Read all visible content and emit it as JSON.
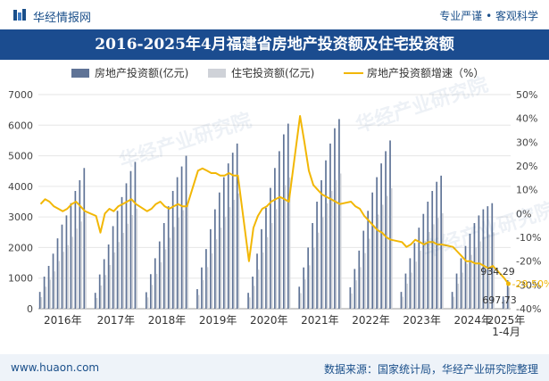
{
  "header": {
    "site_name": "华经情报网",
    "tagline": "专业严谨 • 客观科学",
    "logo_icon": "huajing-logo-icon"
  },
  "chart_data": {
    "type": "bar",
    "title": "2016-2025年4月福建省房地产投资额及住宅投资额",
    "legend": [
      "房地产投资额(亿元)",
      "住宅投资额(亿元)",
      "房地产投资额增速（%）"
    ],
    "left_axis": {
      "ticks": [
        "0",
        "1000",
        "2000",
        "3000",
        "4000",
        "5000",
        "6000",
        "7000"
      ],
      "ylim": [
        0,
        7000
      ]
    },
    "right_axis": {
      "ticks": [
        "-40%",
        "-30%",
        "-20%",
        "-10%",
        "0%",
        "10%",
        "20%",
        "30%",
        "40%",
        "50%"
      ],
      "ylim": [
        -40,
        50
      ]
    },
    "years": [
      {
        "label": "2016年",
        "invest": [
          550,
          1050,
          1400,
          1800,
          2300,
          2750,
          3050,
          3450,
          3850,
          4200,
          4600
        ],
        "resid": [
          380,
          720,
          950,
          1220,
          1560,
          1860,
          2080,
          2350,
          2620,
          2850,
          3120
        ],
        "growth": [
          4,
          6,
          5,
          3,
          2,
          1,
          2,
          4,
          5,
          3,
          1
        ]
      },
      {
        "label": "2017年",
        "invest": [
          520,
          1120,
          1620,
          2100,
          2700,
          3200,
          3650,
          4100,
          4500,
          4800
        ],
        "resid": [
          350,
          760,
          1100,
          1430,
          1840,
          2180,
          2480,
          2780,
          3060,
          3270
        ],
        "growth": [
          -1,
          -8,
          0,
          2,
          1,
          3,
          4,
          5,
          6,
          4
        ]
      },
      {
        "label": "2018年",
        "invest": [
          540,
          1130,
          1650,
          2200,
          2800,
          3350,
          3850,
          4300,
          4650,
          5000
        ],
        "resid": [
          370,
          780,
          1140,
          1520,
          1940,
          2320,
          2670,
          2980,
          3220,
          3460
        ],
        "growth": [
          1,
          2,
          4,
          5,
          3,
          2,
          3,
          4,
          3,
          3
        ]
      },
      {
        "label": "2019年",
        "invest": [
          640,
          1350,
          1950,
          2600,
          3250,
          3800,
          4300,
          4750,
          5100,
          5400
        ],
        "resid": [
          450,
          940,
          1360,
          1810,
          2270,
          2650,
          3000,
          3320,
          3560,
          3770
        ],
        "growth": [
          18,
          19,
          18,
          17,
          17,
          16,
          16,
          17,
          16,
          16
        ]
      },
      {
        "label": "2020年",
        "invest": [
          520,
          1050,
          1800,
          2600,
          3300,
          3950,
          4600,
          5150,
          5700,
          6050
        ],
        "resid": [
          370,
          750,
          1280,
          1840,
          2340,
          2800,
          3260,
          3650,
          4040,
          4290
        ],
        "growth": [
          -20,
          -6,
          -1,
          2,
          3,
          5,
          6,
          7,
          6,
          5
        ]
      },
      {
        "label": "2021年",
        "invest": [
          720,
          1350,
          2000,
          2800,
          3500,
          4200,
          4850,
          5400,
          5900,
          6200
        ],
        "resid": [
          510,
          960,
          1420,
          1990,
          2490,
          2990,
          3450,
          3850,
          4210,
          4420
        ],
        "growth": [
          41,
          30,
          18,
          12,
          10,
          8,
          7,
          6,
          5,
          4
        ]
      },
      {
        "label": "2022年",
        "invest": [
          700,
          1300,
          1900,
          2550,
          3200,
          3800,
          4300,
          4750,
          5150,
          5500
        ],
        "resid": [
          500,
          930,
          1360,
          1820,
          2290,
          2720,
          3080,
          3400,
          3690,
          3940
        ],
        "growth": [
          5,
          3,
          2,
          -1,
          -3,
          -5,
          -7,
          -8,
          -10,
          -11
        ]
      },
      {
        "label": "2023年",
        "invest": [
          550,
          1150,
          1650,
          2150,
          2650,
          3100,
          3500,
          3850,
          4150,
          4350
        ],
        "resid": [
          390,
          820,
          1180,
          1540,
          1900,
          2220,
          2510,
          2760,
          2970,
          3120
        ],
        "growth": [
          -12,
          -14,
          -13,
          -11,
          -12,
          -13,
          -12,
          -12,
          -13,
          -13
        ]
      },
      {
        "label": "2024年",
        "invest": [
          550,
          1150,
          1650,
          2050,
          2450,
          2800,
          3050,
          3250,
          3350,
          3450
        ],
        "resid": [
          390,
          820,
          1180,
          1470,
          1760,
          2010,
          2200,
          2350,
          2430,
          2500
        ],
        "growth": [
          -14,
          -16,
          -18,
          -20,
          -20,
          -21,
          -21,
          -22,
          -23,
          -22
        ]
      },
      {
        "label": "2025年\n1-4月",
        "invest": [
          400,
          934.29
        ],
        "resid": [
          290,
          697.73
        ],
        "growth": [
          -27,
          -29.5
        ]
      }
    ],
    "annotations": {
      "last_invest": "934.29",
      "last_resid": "697.73",
      "last_growth": "-29.50%"
    },
    "colors": {
      "invest": "#5f7396",
      "resid": "#cfd2d8",
      "growth": "#f2b705",
      "grid": "#e6e6e6"
    }
  },
  "watermark": "华经产业研究院",
  "footer": {
    "url": "www.huaon.com",
    "source": "数据来源：国家统计局，华经产业研究院整理"
  }
}
